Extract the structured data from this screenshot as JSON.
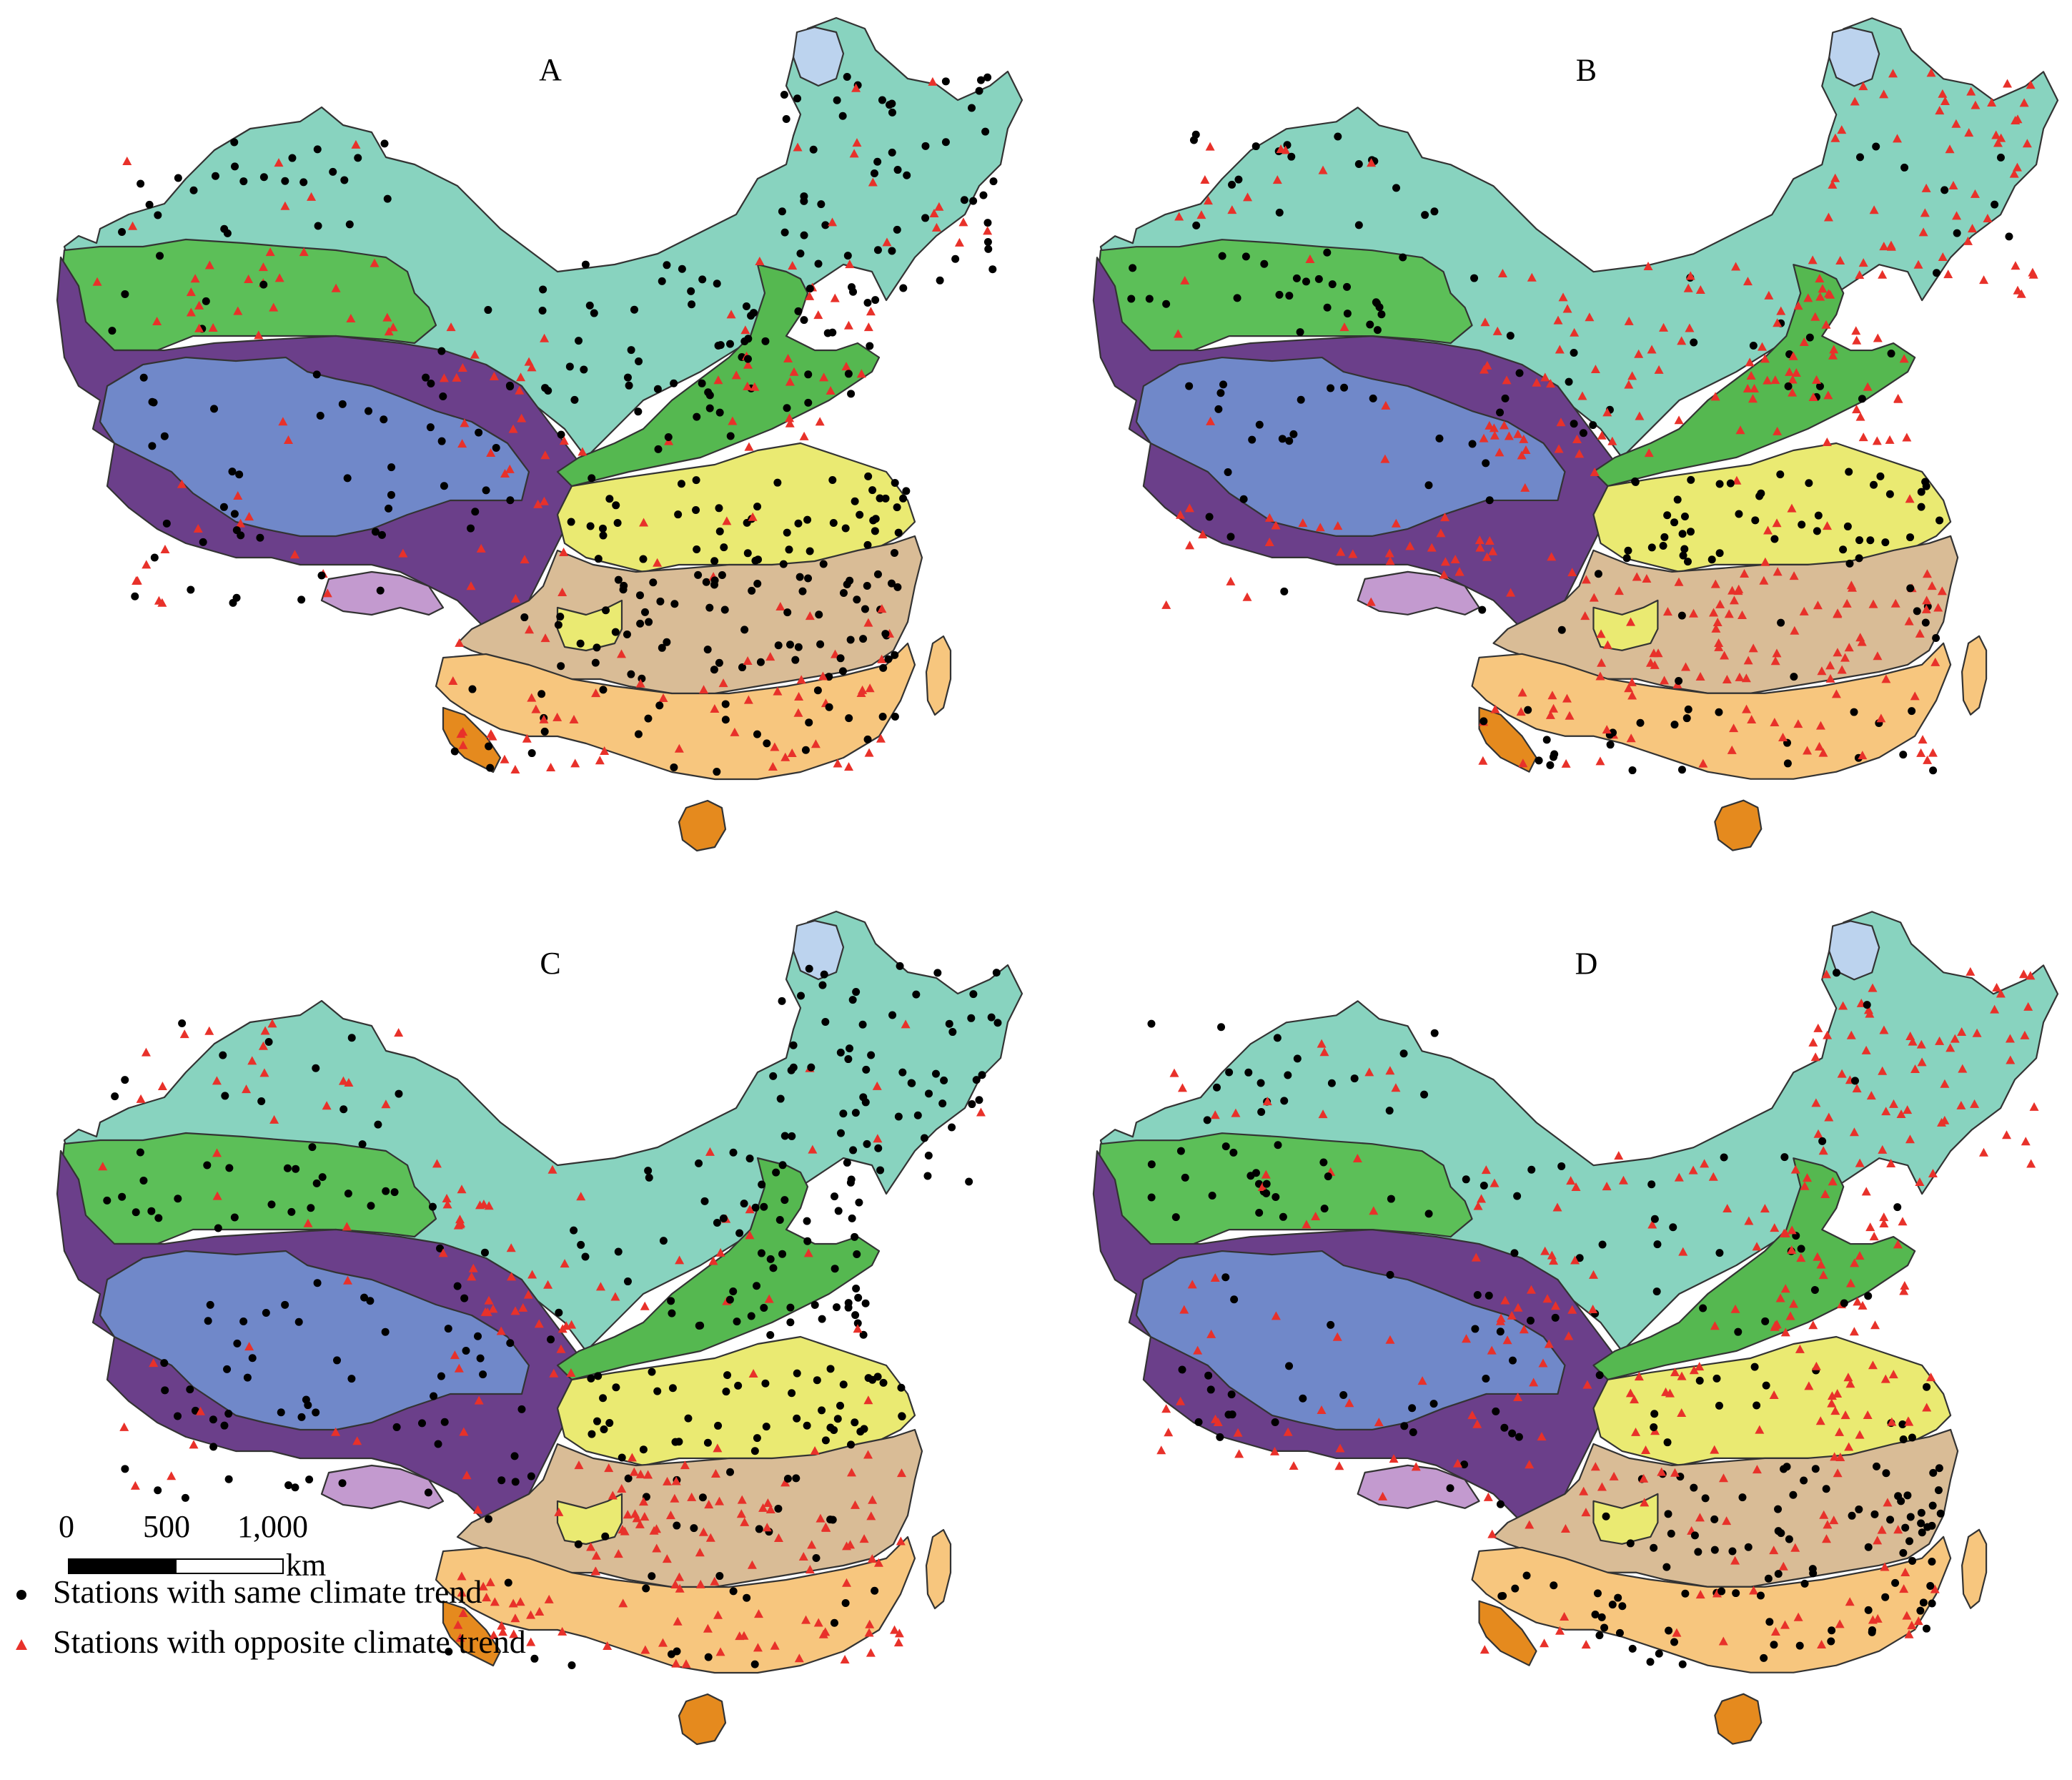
{
  "panels": [
    {
      "label": "A",
      "dot_color": "#000000",
      "triangle_color": "#e8312a"
    },
    {
      "label": "B",
      "dot_color": "#000000",
      "triangle_color": "#e8312a"
    },
    {
      "label": "C",
      "dot_color": "#000000",
      "triangle_color": "#e8312a"
    },
    {
      "label": "D",
      "dot_color": "#000000",
      "triangle_color": "#e8312a"
    }
  ],
  "region_colors": {
    "northeast_north": "#88d3bf",
    "northwest_basin": "#5cbf58",
    "tibet_core": "#7088c9",
    "tibet_rim": "#6b3f8a",
    "south_tibet": "#c39acf",
    "north_china": "#55b850",
    "huai_yangtze_north": "#eaea72",
    "central_south": "#d9bc96",
    "south_china": "#f7c67e",
    "tropical": "#e58a1e",
    "lake_heilongjiang": "#bcd3ee"
  },
  "scale": {
    "labels": [
      "0",
      "500",
      "1,000"
    ],
    "unit": "km"
  },
  "legend": {
    "same_label": "Stations with same climate trend",
    "opposite_label": "Stations with opposite climate trend",
    "same_color": "#000000",
    "opposite_color": "#e8312a"
  }
}
